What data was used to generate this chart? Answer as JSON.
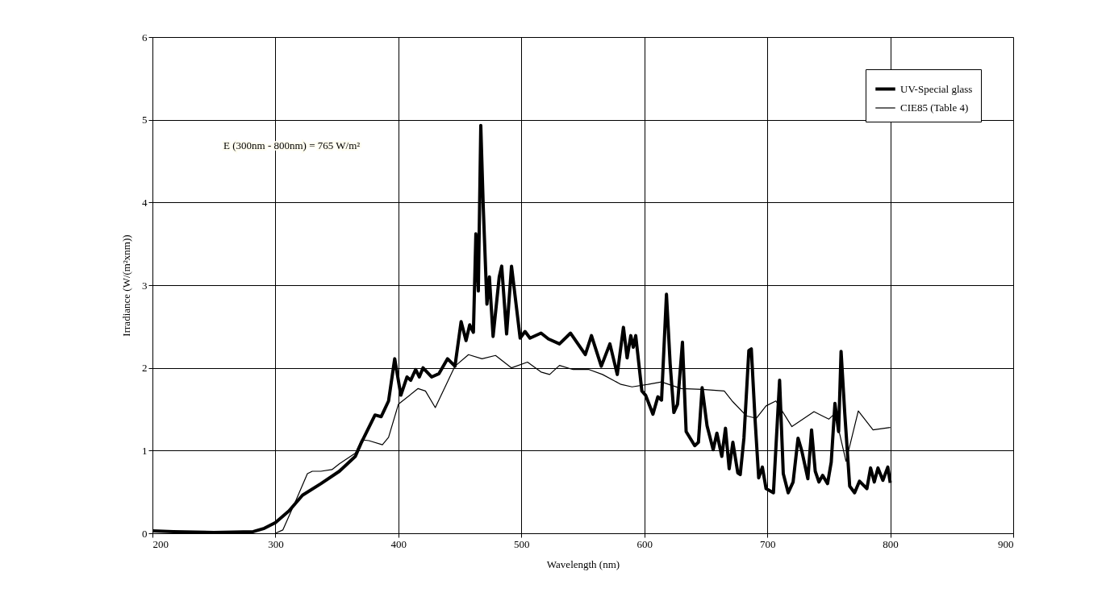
{
  "chart_data": {
    "type": "line",
    "xlabel": "Wavelength (nm)",
    "ylabel": "Irradiance (W/(m²xnm))",
    "xlim": [
      200,
      900
    ],
    "xticks": [
      200,
      300,
      400,
      500,
      600,
      700,
      800,
      900
    ],
    "ylim": [
      0,
      6
    ],
    "yticks": [
      0,
      1,
      2,
      3,
      4,
      5,
      6
    ],
    "grid": true,
    "legend": "top right",
    "marker": "none",
    "line_style": "solid",
    "annotations": [
      "E (300nm - 800nm) = 765 W/m²"
    ],
    "series": [
      {
        "name": "UV-Special glass",
        "color": "#000000",
        "x": [
          200,
          217,
          250,
          282,
          291,
          300,
          311,
          322,
          337,
          352,
          365,
          370,
          381,
          386,
          392,
          397,
          402,
          407,
          410,
          414,
          417,
          420,
          427,
          433,
          440,
          446,
          451,
          455,
          458,
          461,
          463,
          465,
          467,
          469,
          472,
          474,
          477,
          482,
          484,
          488,
          492,
          499,
          503,
          507,
          516,
          522,
          531,
          540,
          552,
          557,
          565,
          572,
          578,
          583,
          586,
          589,
          591,
          593,
          598,
          601,
          607,
          611,
          614,
          618,
          621,
          624,
          627,
          631,
          634,
          641,
          644,
          647,
          651,
          656,
          659,
          663,
          666,
          669,
          672,
          676,
          678,
          681,
          685,
          687,
          690,
          693,
          696,
          699,
          705,
          710,
          713,
          717,
          721,
          725,
          728,
          733,
          736,
          739,
          742,
          745,
          749,
          752,
          755,
          758,
          760,
          763,
          767,
          771,
          775,
          781,
          784,
          787,
          790,
          794,
          798,
          800
        ],
        "values": [
          0.03,
          0.02,
          0.01,
          0.02,
          0.06,
          0.13,
          0.27,
          0.46,
          0.6,
          0.75,
          0.93,
          1.1,
          1.43,
          1.41,
          1.6,
          2.11,
          1.67,
          1.89,
          1.85,
          1.98,
          1.89,
          2.0,
          1.89,
          1.93,
          2.11,
          2.02,
          2.56,
          2.33,
          2.52,
          2.43,
          3.62,
          2.93,
          4.93,
          3.95,
          2.77,
          3.1,
          2.38,
          3.1,
          3.23,
          2.41,
          3.23,
          2.36,
          2.44,
          2.36,
          2.42,
          2.35,
          2.29,
          2.42,
          2.16,
          2.39,
          2.02,
          2.29,
          1.92,
          2.49,
          2.12,
          2.39,
          2.25,
          2.39,
          1.72,
          1.67,
          1.44,
          1.65,
          1.61,
          2.89,
          2.05,
          1.46,
          1.56,
          2.31,
          1.23,
          1.06,
          1.1,
          1.76,
          1.3,
          1.01,
          1.21,
          0.93,
          1.27,
          0.78,
          1.1,
          0.73,
          0.71,
          1.15,
          2.21,
          2.23,
          1.39,
          0.67,
          0.8,
          0.54,
          0.49,
          1.85,
          0.72,
          0.49,
          0.62,
          1.15,
          1.0,
          0.66,
          1.25,
          0.75,
          0.62,
          0.7,
          0.6,
          0.86,
          1.57,
          1.23,
          2.2,
          1.45,
          0.57,
          0.49,
          0.63,
          0.54,
          0.79,
          0.62,
          0.79,
          0.64,
          0.8,
          0.61
        ]
      },
      {
        "name": "CIE85 (Table 4)",
        "color": "#000000",
        "x": [
          300,
          306,
          317,
          326,
          330,
          337,
          346,
          352,
          365,
          370,
          376,
          387,
          392,
          400,
          416,
          422,
          430,
          446,
          457,
          468,
          479,
          492,
          505,
          516,
          523,
          531,
          542,
          555,
          566,
          581,
          590,
          603,
          614,
          630,
          647,
          665,
          672,
          683,
          691,
          699,
          707,
          720,
          738,
          750,
          755,
          764,
          774,
          786,
          800
        ],
        "values": [
          0,
          0.04,
          0.41,
          0.72,
          0.75,
          0.75,
          0.77,
          0.84,
          0.97,
          1.13,
          1.12,
          1.07,
          1.16,
          1.56,
          1.75,
          1.72,
          1.52,
          2.02,
          2.16,
          2.11,
          2.15,
          2.0,
          2.07,
          1.95,
          1.92,
          2.03,
          1.98,
          1.98,
          1.92,
          1.8,
          1.77,
          1.8,
          1.83,
          1.75,
          1.74,
          1.72,
          1.59,
          1.42,
          1.39,
          1.54,
          1.6,
          1.29,
          1.47,
          1.38,
          1.45,
          0.87,
          1.48,
          1.25,
          1.28
        ]
      }
    ]
  }
}
